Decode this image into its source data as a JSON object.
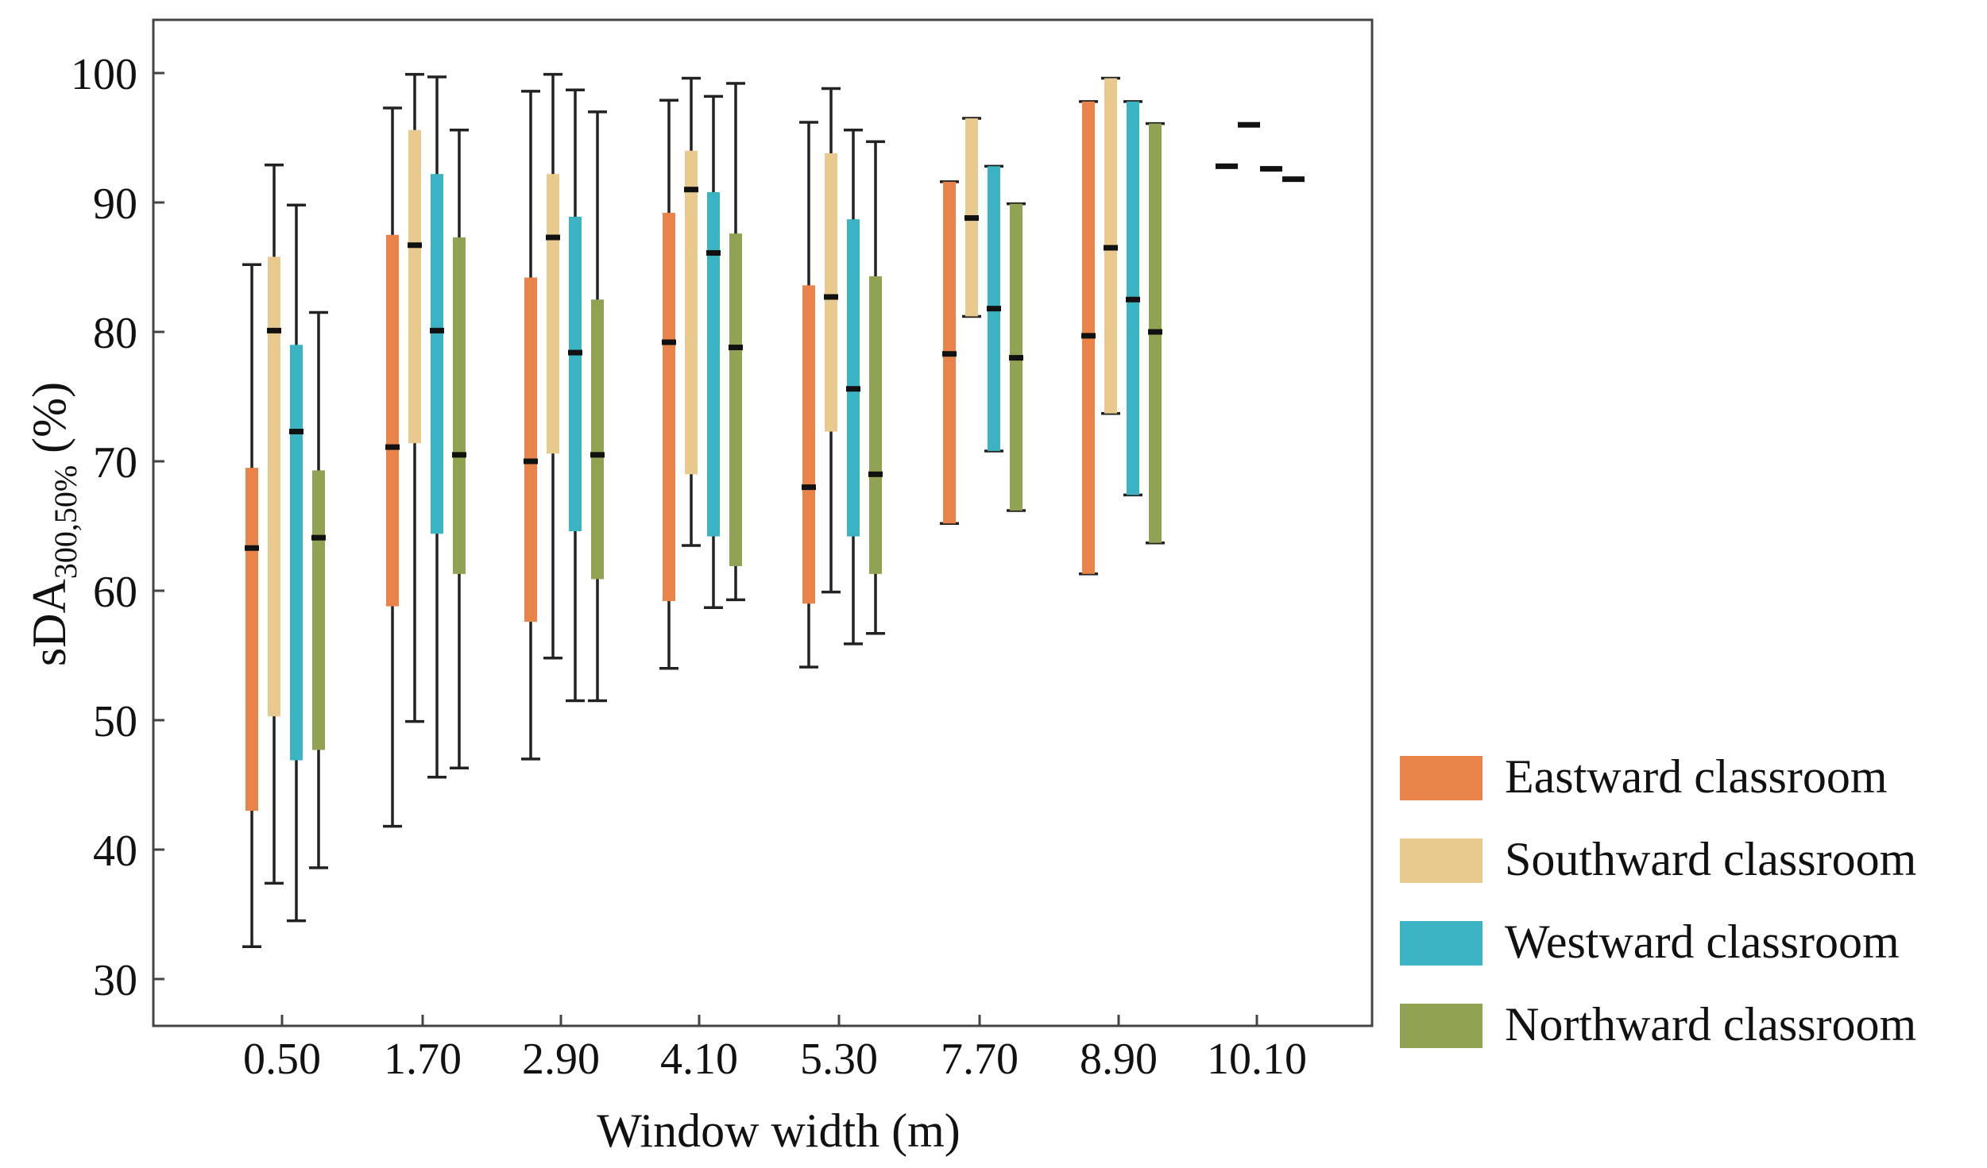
{
  "chart_data": {
    "type": "box",
    "title": "",
    "xlabel": "Window width  (m)",
    "ylabel": "sDA",
    "ylabel_sub": "300,50%",
    "ylabel_unit": " (%)",
    "ylim": [
      26,
      104
    ],
    "yticks": [
      30,
      40,
      50,
      60,
      70,
      80,
      90,
      100
    ],
    "categories": [
      "0.50",
      "1.70",
      "2.90",
      "4.10",
      "5.30",
      "7.70",
      "8.90",
      "10.10"
    ],
    "legend_position": "right",
    "series": [
      {
        "name": "Eastward classroom",
        "color": "#E8844A",
        "boxes": [
          {
            "whisker_low": 32.5,
            "q1": 43.0,
            "median": 63.3,
            "q3": 69.5,
            "whisker_high": 85.2
          },
          {
            "whisker_low": 41.8,
            "q1": 58.8,
            "median": 71.1,
            "q3": 87.5,
            "whisker_high": 97.3
          },
          {
            "whisker_low": 47.0,
            "q1": 57.6,
            "median": 70.0,
            "q3": 84.2,
            "whisker_high": 98.6
          },
          {
            "whisker_low": 54.0,
            "q1": 59.2,
            "median": 79.2,
            "q3": 89.2,
            "whisker_high": 97.9
          },
          {
            "whisker_low": 54.1,
            "q1": 59.0,
            "median": 68.0,
            "q3": 83.6,
            "whisker_high": 96.2
          },
          {
            "whisker_low": 65.2,
            "q1": 65.2,
            "median": 78.3,
            "q3": 91.6,
            "whisker_high": 91.6
          },
          {
            "whisker_low": 61.3,
            "q1": 61.3,
            "median": 79.7,
            "q3": 97.8,
            "whisker_high": 97.8
          },
          {
            "whisker_low": 92.8,
            "q1": 92.8,
            "median": 92.8,
            "q3": 92.8,
            "whisker_high": 92.8
          }
        ]
      },
      {
        "name": "Southward classroom",
        "color": "#E8C98E",
        "boxes": [
          {
            "whisker_low": 37.4,
            "q1": 50.3,
            "median": 80.1,
            "q3": 85.8,
            "whisker_high": 92.9
          },
          {
            "whisker_low": 49.9,
            "q1": 71.4,
            "median": 86.7,
            "q3": 95.6,
            "whisker_high": 99.9
          },
          {
            "whisker_low": 54.8,
            "q1": 70.6,
            "median": 87.3,
            "q3": 92.2,
            "whisker_high": 99.9
          },
          {
            "whisker_low": 63.5,
            "q1": 69.0,
            "median": 91.0,
            "q3": 94.0,
            "whisker_high": 99.6
          },
          {
            "whisker_low": 59.9,
            "q1": 72.3,
            "median": 82.7,
            "q3": 93.8,
            "whisker_high": 98.8
          },
          {
            "whisker_low": 81.2,
            "q1": 81.2,
            "median": 88.8,
            "q3": 96.5,
            "whisker_high": 96.5
          },
          {
            "whisker_low": 73.7,
            "q1": 73.7,
            "median": 86.5,
            "q3": 99.6,
            "whisker_high": 99.6
          },
          {
            "whisker_low": 96.0,
            "q1": 96.0,
            "median": 96.0,
            "q3": 96.0,
            "whisker_high": 96.0
          }
        ]
      },
      {
        "name": "Westward classroom",
        "color": "#3BB3C3",
        "boxes": [
          {
            "whisker_low": 34.5,
            "q1": 46.9,
            "median": 72.3,
            "q3": 79.0,
            "whisker_high": 89.8
          },
          {
            "whisker_low": 45.6,
            "q1": 64.4,
            "median": 80.1,
            "q3": 92.2,
            "whisker_high": 99.7
          },
          {
            "whisker_low": 51.5,
            "q1": 64.6,
            "median": 78.4,
            "q3": 88.9,
            "whisker_high": 98.7
          },
          {
            "whisker_low": 58.7,
            "q1": 64.2,
            "median": 86.1,
            "q3": 90.8,
            "whisker_high": 98.2
          },
          {
            "whisker_low": 55.9,
            "q1": 64.2,
            "median": 75.6,
            "q3": 88.7,
            "whisker_high": 95.6
          },
          {
            "whisker_low": 70.8,
            "q1": 70.8,
            "median": 81.8,
            "q3": 92.8,
            "whisker_high": 92.8
          },
          {
            "whisker_low": 67.4,
            "q1": 67.4,
            "median": 82.5,
            "q3": 97.8,
            "whisker_high": 97.8
          },
          {
            "whisker_low": 92.6,
            "q1": 92.6,
            "median": 92.6,
            "q3": 92.6,
            "whisker_high": 92.6
          }
        ]
      },
      {
        "name": "Northward classroom",
        "color": "#8FA352",
        "boxes": [
          {
            "whisker_low": 38.6,
            "q1": 47.7,
            "median": 64.1,
            "q3": 69.3,
            "whisker_high": 81.5
          },
          {
            "whisker_low": 46.3,
            "q1": 61.3,
            "median": 70.5,
            "q3": 87.3,
            "whisker_high": 95.6
          },
          {
            "whisker_low": 51.5,
            "q1": 60.9,
            "median": 70.5,
            "q3": 82.5,
            "whisker_high": 97.0
          },
          {
            "whisker_low": 59.3,
            "q1": 61.9,
            "median": 78.8,
            "q3": 87.6,
            "whisker_high": 99.2
          },
          {
            "whisker_low": 56.7,
            "q1": 61.3,
            "median": 69.0,
            "q3": 84.3,
            "whisker_high": 94.7
          },
          {
            "whisker_low": 66.2,
            "q1": 66.2,
            "median": 78.0,
            "q3": 89.9,
            "whisker_high": 89.9
          },
          {
            "whisker_low": 63.7,
            "q1": 63.7,
            "median": 80.0,
            "q3": 96.1,
            "whisker_high": 96.1
          },
          {
            "whisker_low": 91.8,
            "q1": 91.8,
            "median": 91.8,
            "q3": 91.8,
            "whisker_high": 91.8
          }
        ]
      }
    ]
  }
}
